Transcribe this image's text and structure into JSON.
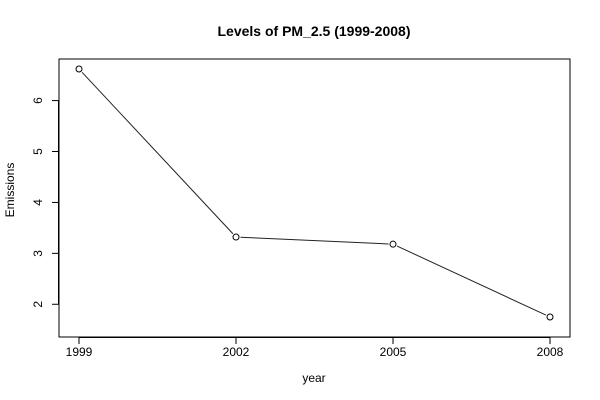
{
  "chart_data": {
    "type": "line",
    "title": "Levels of PM_2.5 (1999-2008)",
    "xlabel": "year",
    "ylabel": "Emissions",
    "x": [
      1999,
      2002,
      2005,
      2008
    ],
    "x_tick_labels": [
      "1999",
      "2002",
      "2005",
      "2008"
    ],
    "series": [
      {
        "values": [
          6.62,
          3.32,
          3.18,
          1.75
        ],
        "color": "#000000",
        "marker": "open-circle"
      }
    ],
    "xlim": [
      1999,
      2008
    ],
    "ylim": [
      1.75,
      6.62
    ],
    "y_ticks": [
      2,
      3,
      4,
      5,
      6
    ],
    "grid": false,
    "legend": "none",
    "style": {
      "axis_color": "#000000",
      "line_color": "#222222",
      "background": "#ffffff"
    }
  }
}
